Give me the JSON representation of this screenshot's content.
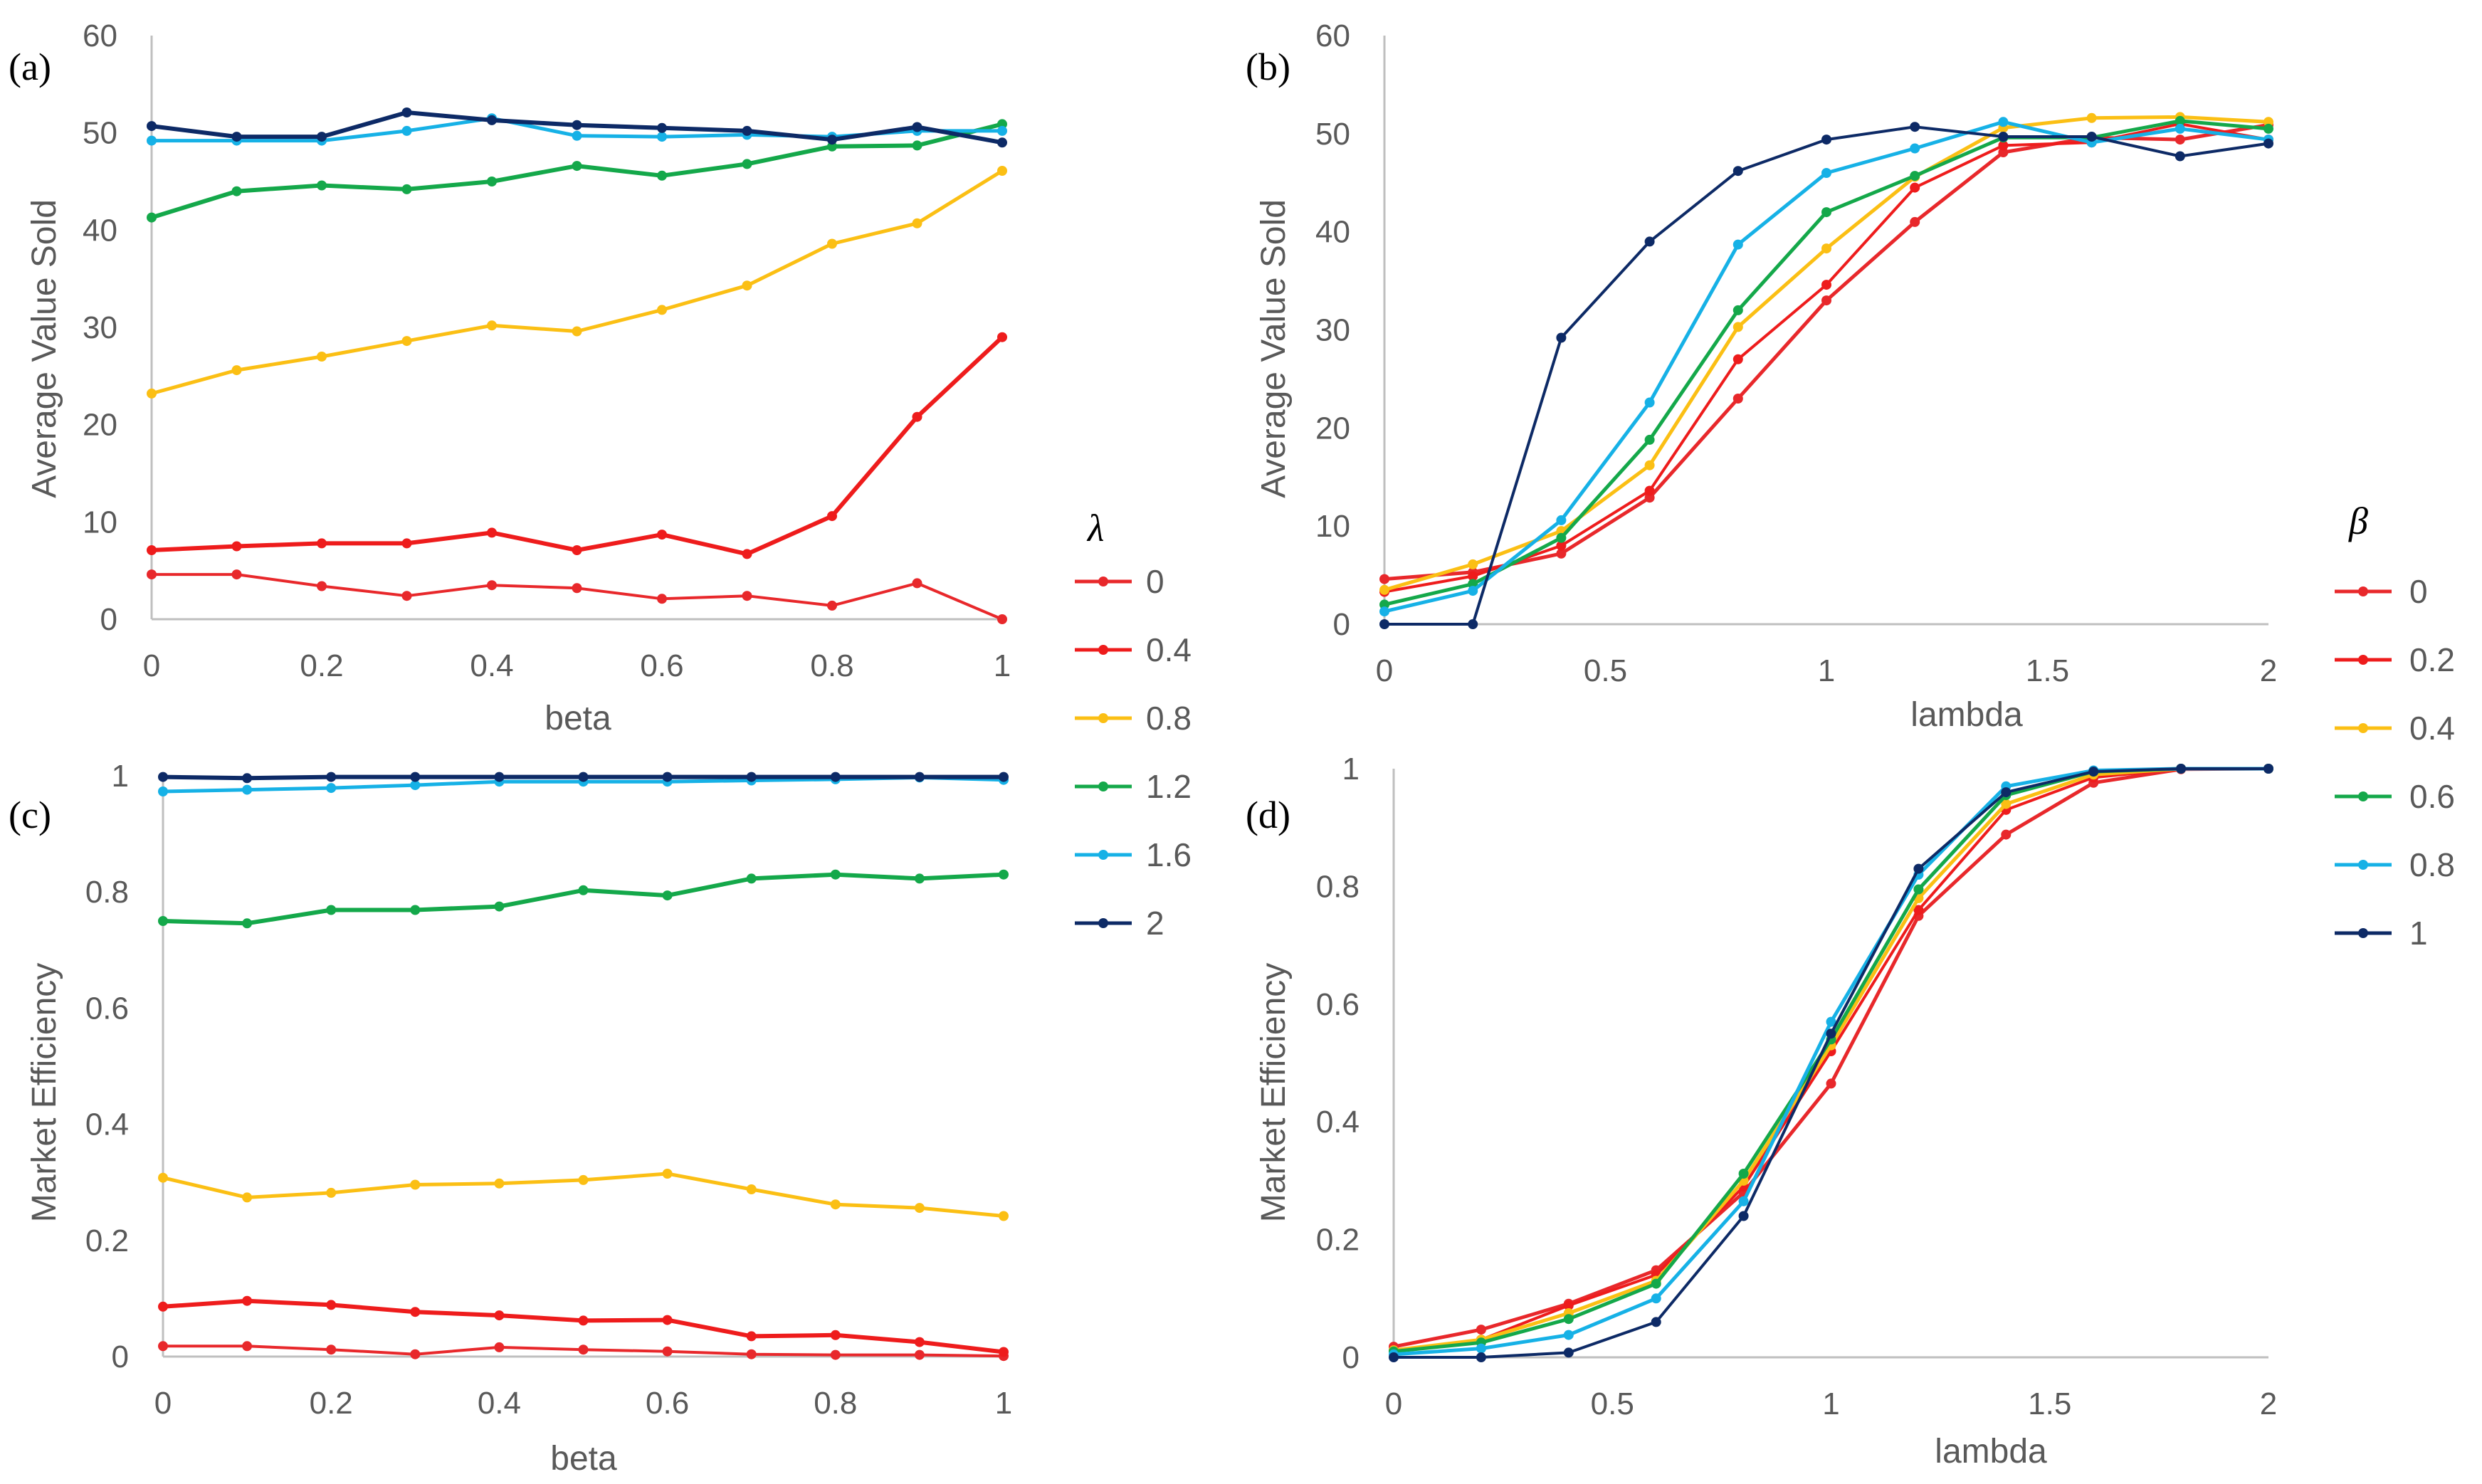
{
  "colors": {
    "s0": "#e8282b",
    "s1": "#ee1c1c",
    "s2": "#fbbf14",
    "s3": "#14a84a",
    "s4": "#16b1e6",
    "s5": "#0d2a66",
    "axis": "#bfbfbf",
    "grid_text": "#595959"
  },
  "legends": [
    {
      "title": "λ",
      "entries": [
        "0",
        "0.4",
        "0.8",
        "1.2",
        "1.6",
        "2"
      ]
    },
    {
      "title": "β",
      "entries": [
        "0",
        "0.2",
        "0.4",
        "0.6",
        "0.8",
        "1"
      ]
    }
  ],
  "chart_data": [
    {
      "panel": "(a)",
      "type": "line",
      "xlabel": "beta",
      "ylabel": "Average Value Sold",
      "xlim": [
        0,
        1
      ],
      "ylim": [
        0,
        60
      ],
      "xticks": [
        "0",
        "0.2",
        "0.4",
        "0.6",
        "0.8",
        "1"
      ],
      "yticks": [
        "0",
        "10",
        "20",
        "30",
        "40",
        "50",
        "60"
      ],
      "legend_ref": 0,
      "x": [
        0,
        0.1,
        0.2,
        0.3,
        0.4,
        0.5,
        0.6,
        0.7,
        0.8,
        0.9,
        1
      ],
      "series": [
        {
          "name": "0",
          "values": [
            4.6,
            4.6,
            3.4,
            2.4,
            3.5,
            3.2,
            2.1,
            2.4,
            1.4,
            3.7,
            0
          ]
        },
        {
          "name": "0.4",
          "values": [
            7.1,
            7.5,
            7.8,
            7.8,
            8.9,
            7.1,
            8.7,
            6.7,
            10.6,
            20.8,
            29.0
          ]
        },
        {
          "name": "0.8",
          "values": [
            23.2,
            25.6,
            27.0,
            28.6,
            30.2,
            29.6,
            31.8,
            34.3,
            38.6,
            40.7,
            46.1
          ]
        },
        {
          "name": "1.2",
          "values": [
            41.3,
            44.0,
            44.6,
            44.2,
            45.0,
            46.6,
            45.6,
            46.8,
            48.6,
            48.7,
            50.9
          ]
        },
        {
          "name": "1.6",
          "values": [
            49.2,
            49.2,
            49.2,
            50.2,
            51.5,
            49.7,
            49.6,
            49.8,
            49.6,
            50.2,
            50.2
          ]
        },
        {
          "name": "2",
          "values": [
            50.7,
            49.6,
            49.6,
            52.1,
            51.3,
            50.8,
            50.5,
            50.2,
            49.3,
            50.6,
            49.0
          ]
        }
      ]
    },
    {
      "panel": "(b)",
      "type": "line",
      "xlabel": "lambda",
      "ylabel": "Average Value Sold",
      "xlim": [
        0,
        2
      ],
      "ylim": [
        0,
        60
      ],
      "xticks": [
        "0",
        "0.5",
        "1",
        "1.5",
        "2"
      ],
      "yticks": [
        "0",
        "10",
        "20",
        "30",
        "40",
        "50",
        "60"
      ],
      "legend_ref": 1,
      "x": [
        0,
        0.2,
        0.4,
        0.6,
        0.8,
        1,
        1.2,
        1.4,
        1.6,
        1.8,
        2
      ],
      "series": [
        {
          "name": "0",
          "values": [
            4.6,
            5.3,
            7.2,
            12.9,
            23.0,
            33.0,
            41.0,
            48.1,
            49.6,
            49.4,
            50.9
          ]
        },
        {
          "name": "0.2",
          "values": [
            3.3,
            4.9,
            8.0,
            13.6,
            27.0,
            34.6,
            44.5,
            48.8,
            49.1,
            51.0,
            49.4
          ]
        },
        {
          "name": "0.4",
          "values": [
            3.5,
            6.1,
            9.5,
            16.2,
            30.3,
            38.3,
            45.6,
            50.6,
            51.6,
            51.7,
            51.2
          ]
        },
        {
          "name": "0.6",
          "values": [
            2.0,
            4.1,
            8.8,
            18.8,
            32.0,
            42.0,
            45.7,
            49.6,
            49.6,
            51.3,
            50.5
          ]
        },
        {
          "name": "0.8",
          "values": [
            1.3,
            3.4,
            10.6,
            22.6,
            38.7,
            46.0,
            48.5,
            51.2,
            49.1,
            50.5,
            49.4
          ]
        },
        {
          "name": "1",
          "values": [
            0,
            0,
            29.2,
            39.0,
            46.2,
            49.4,
            50.7,
            49.7,
            49.7,
            47.7,
            49.0
          ]
        }
      ]
    },
    {
      "panel": "(c)",
      "type": "line",
      "xlabel": "beta",
      "ylabel": "Market Efficiency",
      "xlim": [
        0,
        1
      ],
      "ylim": [
        0,
        1
      ],
      "xticks": [
        "0",
        "0.2",
        "0.4",
        "0.6",
        "0.8",
        "1"
      ],
      "yticks": [
        "0",
        "0.2",
        "0.4",
        "0.6",
        "0.8",
        "1"
      ],
      "legend_ref": 0,
      "x": [
        0,
        0.1,
        0.2,
        0.3,
        0.4,
        0.5,
        0.6,
        0.7,
        0.8,
        0.9,
        1
      ],
      "series": [
        {
          "name": "0",
          "values": [
            0.018,
            0.018,
            0.012,
            0.004,
            0.016,
            0.012,
            0.009,
            0.004,
            0.003,
            0.003,
            0.001
          ]
        },
        {
          "name": "0.4",
          "values": [
            0.086,
            0.096,
            0.089,
            0.077,
            0.071,
            0.062,
            0.063,
            0.035,
            0.037,
            0.025,
            0.008
          ]
        },
        {
          "name": "0.8",
          "values": [
            0.308,
            0.274,
            0.282,
            0.296,
            0.298,
            0.304,
            0.315,
            0.288,
            0.262,
            0.256,
            0.242
          ]
        },
        {
          "name": "1.2",
          "values": [
            0.75,
            0.746,
            0.769,
            0.769,
            0.775,
            0.803,
            0.794,
            0.823,
            0.83,
            0.823,
            0.83
          ]
        },
        {
          "name": "1.6",
          "values": [
            0.973,
            0.976,
            0.979,
            0.984,
            0.99,
            0.99,
            0.99,
            0.992,
            0.994,
            0.997,
            0.993
          ]
        },
        {
          "name": "2",
          "values": [
            0.998,
            0.996,
            0.998,
            0.998,
            0.998,
            0.998,
            0.998,
            0.998,
            0.998,
            0.998,
            0.998
          ]
        }
      ]
    },
    {
      "panel": "(d)",
      "type": "line",
      "xlabel": "lambda",
      "ylabel": "Market Efficiency",
      "xlim": [
        0,
        2
      ],
      "ylim": [
        0,
        1
      ],
      "xticks": [
        "0",
        "0.5",
        "1",
        "1.5",
        "2"
      ],
      "yticks": [
        "0",
        "0.2",
        "0.4",
        "0.6",
        "0.8",
        "1"
      ],
      "legend_ref": 1,
      "x": [
        0,
        0.2,
        0.4,
        0.6,
        0.8,
        1,
        1.2,
        1.4,
        1.6,
        1.8,
        2
      ],
      "series": [
        {
          "name": "0",
          "values": [
            0.018,
            0.047,
            0.091,
            0.148,
            0.28,
            0.465,
            0.75,
            0.888,
            0.976,
            0.999,
            1.0
          ]
        },
        {
          "name": "0.2",
          "values": [
            0.012,
            0.03,
            0.088,
            0.14,
            0.29,
            0.52,
            0.76,
            0.93,
            0.985,
            1.0,
            1.0
          ]
        },
        {
          "name": "0.4",
          "values": [
            0.012,
            0.03,
            0.075,
            0.13,
            0.3,
            0.53,
            0.78,
            0.94,
            0.99,
            1.0,
            1.0
          ]
        },
        {
          "name": "0.6",
          "values": [
            0.01,
            0.025,
            0.065,
            0.125,
            0.312,
            0.54,
            0.795,
            0.955,
            0.995,
            1.0,
            1.0
          ]
        },
        {
          "name": "0.8",
          "values": [
            0.005,
            0.015,
            0.038,
            0.1,
            0.265,
            0.57,
            0.82,
            0.97,
            0.997,
            1.0,
            1.0
          ]
        },
        {
          "name": "1",
          "values": [
            0,
            0,
            0.008,
            0.06,
            0.24,
            0.55,
            0.83,
            0.96,
            0.995,
            1.0,
            1.0
          ]
        }
      ]
    }
  ]
}
